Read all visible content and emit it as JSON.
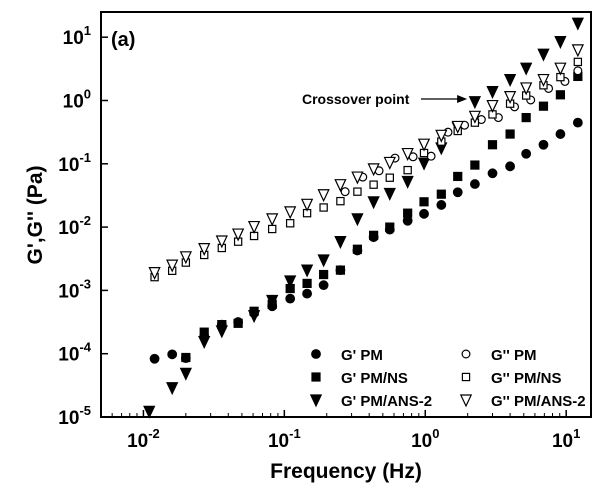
{
  "chart_data": {
    "type": "scatter",
    "panel_label": "(a)",
    "xlabel": "Frequency (Hz)",
    "ylabel": "G',G''  (Pa)",
    "x_scale": "log",
    "y_scale": "log",
    "xlim": [
      0.005,
      15
    ],
    "ylim": [
      1e-05,
      25
    ],
    "x_ticks": [
      {
        "value": 0.01,
        "base": "10",
        "exp": "-2"
      },
      {
        "value": 0.1,
        "base": "10",
        "exp": "-1"
      },
      {
        "value": 1,
        "base": "10",
        "exp": "0"
      },
      {
        "value": 10,
        "base": "10",
        "exp": "1"
      }
    ],
    "y_ticks": [
      {
        "value": 1e-05,
        "base": "10",
        "exp": "-5"
      },
      {
        "value": 0.0001,
        "base": "10",
        "exp": "-4"
      },
      {
        "value": 0.001,
        "base": "10",
        "exp": "-3"
      },
      {
        "value": 0.01,
        "base": "10",
        "exp": "-2"
      },
      {
        "value": 0.1,
        "base": "10",
        "exp": "-1"
      },
      {
        "value": 1,
        "base": "10",
        "exp": "0"
      },
      {
        "value": 10,
        "base": "10",
        "exp": "1"
      }
    ],
    "grid": false,
    "legend_position": "bottom-right",
    "annotation": {
      "text": "Crossover point",
      "x": 2.15,
      "y": 0.82
    },
    "series": [
      {
        "name": "G' PM",
        "marker": "circle-filled",
        "points": [
          [
            0.012,
            8.32e-05
          ],
          [
            0.016,
            9.77e-05
          ],
          [
            0.02,
            8.51e-05
          ],
          [
            0.027,
            0.00019
          ],
          [
            0.036,
            0.000288
          ],
          [
            0.047,
            0.000316
          ],
          [
            0.061,
            0.000437
          ],
          [
            0.082,
            0.000562
          ],
          [
            0.11,
            0.000741
          ],
          [
            0.145,
            0.00089
          ],
          [
            0.19,
            0.00121
          ],
          [
            0.25,
            0.00209
          ],
          [
            0.33,
            0.00427
          ],
          [
            0.43,
            0.00692
          ],
          [
            0.56,
            0.00912
          ],
          [
            0.75,
            0.0126
          ],
          [
            0.98,
            0.0162
          ],
          [
            1.3,
            0.0224
          ],
          [
            1.7,
            0.0355
          ],
          [
            2.25,
            0.0479
          ],
          [
            3,
            0.0708
          ],
          [
            4,
            0.0912
          ],
          [
            5.2,
            0.144
          ],
          [
            6.9,
            0.2
          ],
          [
            9.1,
            0.295
          ],
          [
            12.1,
            0.447
          ]
        ]
      },
      {
        "name": "G' PM/NS",
        "marker": "square-filled",
        "points": [
          [
            0.02,
            8.71e-05
          ],
          [
            0.027,
            0.000219
          ],
          [
            0.036,
            0.000288
          ],
          [
            0.047,
            0.000302
          ],
          [
            0.061,
            0.000468
          ],
          [
            0.082,
            0.000603
          ],
          [
            0.11,
            0.00107
          ],
          [
            0.145,
            0.00129
          ],
          [
            0.19,
            0.00178
          ],
          [
            0.25,
            0.00209
          ],
          [
            0.33,
            0.00447
          ],
          [
            0.43,
            0.00741
          ],
          [
            0.56,
            0.01
          ],
          [
            0.75,
            0.0166
          ],
          [
            0.98,
            0.0251
          ],
          [
            1.3,
            0.0331
          ],
          [
            1.7,
            0.0631
          ],
          [
            2.25,
            0.0955
          ],
          [
            3,
            0.2
          ],
          [
            4,
            0.295
          ],
          [
            5.2,
            0.537
          ],
          [
            6.9,
            0.813
          ],
          [
            9.1,
            1.23
          ],
          [
            12.1,
            2.4
          ]
        ]
      },
      {
        "name": "G' PM/ANS-2",
        "marker": "triangle-down-filled",
        "points": [
          [
            0.011,
            1.23e-05
          ],
          [
            0.016,
            2.9e-05
          ],
          [
            0.02,
            4.9e-05
          ],
          [
            0.027,
            0.000155
          ],
          [
            0.036,
            0.000229
          ],
          [
            0.061,
            0.000398
          ],
          [
            0.082,
            0.000692
          ],
          [
            0.11,
            0.00141
          ],
          [
            0.145,
            0.00209
          ],
          [
            0.19,
            0.00302
          ],
          [
            0.25,
            0.00589
          ],
          [
            0.33,
            0.0135
          ],
          [
            0.43,
            0.0251
          ],
          [
            0.56,
            0.0339
          ],
          [
            0.75,
            0.0525
          ],
          [
            0.98,
            0.102
          ],
          [
            1.3,
            0.178
          ],
          [
            1.7,
            0.372
          ],
          [
            2.25,
            0.955
          ],
          [
            3,
            1.38
          ],
          [
            4,
            2.14
          ],
          [
            5.2,
            3.24
          ],
          [
            6.9,
            5.37
          ],
          [
            9.1,
            8.51
          ],
          [
            12.1,
            16.6
          ]
        ]
      },
      {
        "name": "G'' PM",
        "marker": "circle-open",
        "points": [
          [
            0.27,
            0.0363
          ],
          [
            0.36,
            0.0617
          ],
          [
            0.47,
            0.0776
          ],
          [
            0.61,
            0.123
          ],
          [
            0.82,
            0.129
          ],
          [
            1.1,
            0.132
          ],
          [
            1.45,
            0.316
          ],
          [
            1.9,
            0.407
          ],
          [
            2.5,
            0.5
          ],
          [
            3.3,
            0.537
          ],
          [
            4.3,
            0.794
          ],
          [
            5.6,
            1.02
          ],
          [
            7.5,
            1.55
          ],
          [
            9.8,
            2.0
          ],
          [
            12.1,
            2.95
          ]
        ]
      },
      {
        "name": "G'' PM/NS",
        "marker": "square-open",
        "points": [
          [
            0.012,
            0.00162
          ],
          [
            0.016,
            0.00204
          ],
          [
            0.02,
            0.00275
          ],
          [
            0.027,
            0.00363
          ],
          [
            0.036,
            0.00468
          ],
          [
            0.047,
            0.00589
          ],
          [
            0.061,
            0.00724
          ],
          [
            0.082,
            0.00933
          ],
          [
            0.11,
            0.0115
          ],
          [
            0.145,
            0.0166
          ],
          [
            0.19,
            0.0204
          ],
          [
            0.25,
            0.0257
          ],
          [
            0.33,
            0.0363
          ],
          [
            0.43,
            0.0468
          ],
          [
            0.56,
            0.0603
          ],
          [
            0.75,
            0.0794
          ],
          [
            0.98,
            0.148
          ],
          [
            1.3,
            0.224
          ],
          [
            1.7,
            0.33
          ],
          [
            2.25,
            0.447
          ],
          [
            3,
            0.603
          ],
          [
            4,
            0.891
          ],
          [
            5.2,
            1.2
          ],
          [
            6.9,
            1.74
          ],
          [
            9.1,
            2.34
          ],
          [
            12.1,
            4.07
          ]
        ]
      },
      {
        "name": "G'' PM/ANS-2",
        "marker": "triangle-down-open",
        "points": [
          [
            0.012,
            0.00191
          ],
          [
            0.016,
            0.00251
          ],
          [
            0.02,
            0.00339
          ],
          [
            0.027,
            0.00457
          ],
          [
            0.036,
            0.00603
          ],
          [
            0.047,
            0.00776
          ],
          [
            0.061,
            0.0102
          ],
          [
            0.082,
            0.0135
          ],
          [
            0.11,
            0.0174
          ],
          [
            0.145,
            0.0229
          ],
          [
            0.19,
            0.0324
          ],
          [
            0.25,
            0.0468
          ],
          [
            0.33,
            0.0617
          ],
          [
            0.43,
            0.0832
          ],
          [
            0.56,
            0.105
          ],
          [
            0.75,
            0.145
          ],
          [
            0.98,
            0.204
          ],
          [
            1.3,
            0.282
          ],
          [
            1.7,
            0.389
          ],
          [
            2.25,
            0.562
          ],
          [
            3,
            0.832
          ],
          [
            4,
            1.15
          ],
          [
            5.2,
            1.58
          ],
          [
            6.9,
            2.14
          ],
          [
            9.1,
            3.24
          ],
          [
            12.1,
            6.31
          ]
        ]
      }
    ]
  },
  "colors": {
    "ink": "#000000",
    "background": "#ffffff"
  }
}
